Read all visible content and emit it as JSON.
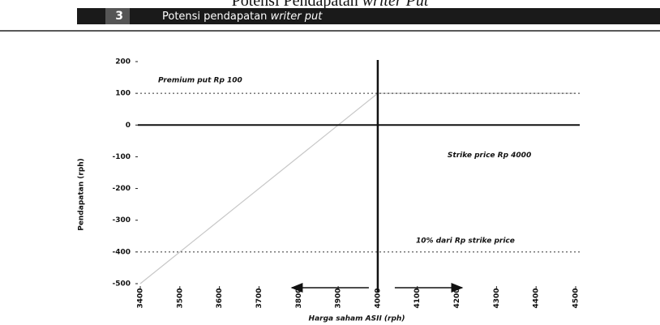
{
  "chart_data": {
    "type": "line",
    "page_title": "Potensi Pendapatan",
    "page_title_italic": "writer Put",
    "figure_number": "3",
    "figure_title": "Potensi pendapatan",
    "figure_title_italic": "writer put",
    "xlabel": "Harga saham ASII (rph)",
    "ylabel": "Pendapatan (rph)",
    "x": [
      3400,
      3500,
      4000,
      4500
    ],
    "values": [
      -500,
      -400,
      100,
      100
    ],
    "color": "#c8c8c8",
    "xlim": [
      3400,
      4500
    ],
    "xticks": [
      3400,
      3500,
      3600,
      3700,
      3800,
      3900,
      4000,
      4100,
      4200,
      4300,
      4400,
      4500
    ],
    "ylim": [
      -500,
      200
    ],
    "yticks": [
      200,
      100,
      0,
      -100,
      -200,
      -300,
      -400,
      -500
    ],
    "reference_lines": [
      {
        "value": 100,
        "label": "Premium put Rp 100"
      },
      {
        "value": -400,
        "label": "10% dari Rp strike price"
      }
    ],
    "strike": {
      "value": 4000,
      "label": "Strike price Rp 4000"
    }
  }
}
